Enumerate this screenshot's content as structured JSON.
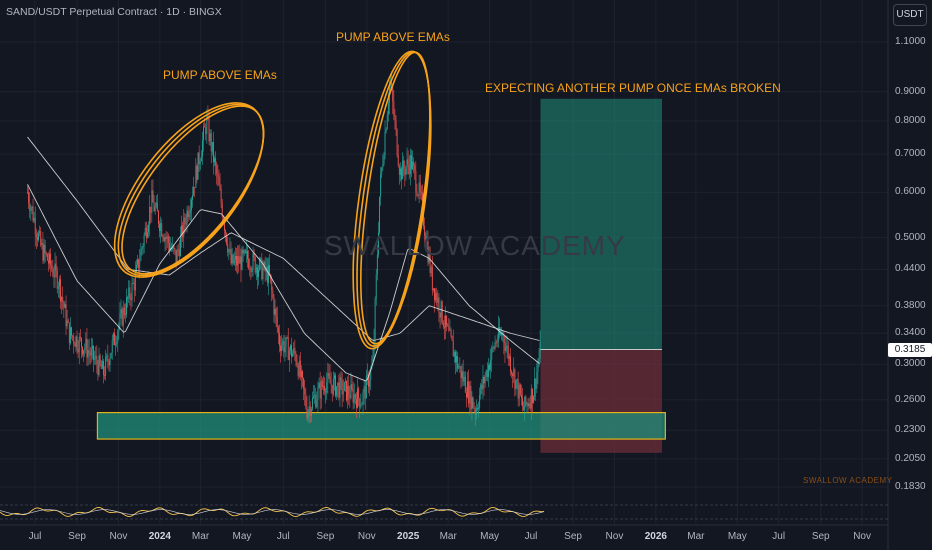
{
  "header": {
    "title": "SAND/USDT Perpetual Contract · 1D · BINGX",
    "currency": "USDT"
  },
  "watermark": "SWALLOW ACADEMY",
  "brand": "SWALLOW ACADEMY",
  "annotations": {
    "pump1": "PUMP ABOVE EMAs",
    "pump2": "PUMP ABOVE EMAs",
    "expect": "EXPECTING ANOTHER PUMP ONCE EMAs BROKEN"
  },
  "price_tag": "0.3185",
  "colors": {
    "up": "#26a69a",
    "down": "#ef5350",
    "annotation": "#f7a21b",
    "zone": "#1f8f7a",
    "loss": "#6b2d3a",
    "ema": "#e0e0e0"
  },
  "chart_data": {
    "type": "candlestick",
    "symbol": "SAND/USDT",
    "timeframe": "1D",
    "y_scale": "log",
    "ylim": [
      0.175,
      1.12
    ],
    "y_ticks": [
      "1.1000",
      "0.9000",
      "0.8000",
      "0.7000",
      "0.6000",
      "0.5000",
      "0.4400",
      "0.3800",
      "0.3400",
      "0.3000",
      "0.2600",
      "0.2300",
      "0.2050",
      "0.1830"
    ],
    "x_ticks": [
      "Jul",
      "Sep",
      "Nov",
      "2024",
      "Mar",
      "May",
      "Jul",
      "Sep",
      "Nov",
      "2025",
      "Mar",
      "May",
      "Jul",
      "Sep",
      "Nov",
      "2026",
      "Mar",
      "May",
      "Jul",
      "Sep",
      "Nov"
    ],
    "last_price": 0.3185,
    "price_path": [
      [
        "2023-06-20",
        0.6
      ],
      [
        "2023-07-10",
        0.48
      ],
      [
        "2023-08-05",
        0.42
      ],
      [
        "2023-08-20",
        0.34
      ],
      [
        "2023-09-15",
        0.32
      ],
      [
        "2023-10-10",
        0.29
      ],
      [
        "2023-11-01",
        0.35
      ],
      [
        "2023-11-25",
        0.42
      ],
      [
        "2023-12-20",
        0.58
      ],
      [
        "2024-01-10",
        0.5
      ],
      [
        "2024-01-25",
        0.46
      ],
      [
        "2024-02-20",
        0.62
      ],
      [
        "2024-03-10",
        0.8
      ],
      [
        "2024-03-25",
        0.64
      ],
      [
        "2024-04-15",
        0.45
      ],
      [
        "2024-05-10",
        0.46
      ],
      [
        "2024-06-10",
        0.43
      ],
      [
        "2024-06-25",
        0.33
      ],
      [
        "2024-07-20",
        0.31
      ],
      [
        "2024-08-05",
        0.25
      ],
      [
        "2024-09-01",
        0.28
      ],
      [
        "2024-10-01",
        0.27
      ],
      [
        "2024-10-25",
        0.26
      ],
      [
        "2024-11-10",
        0.3
      ],
      [
        "2024-11-20",
        0.6
      ],
      [
        "2024-12-05",
        0.95
      ],
      [
        "2024-12-20",
        0.65
      ],
      [
        "2025-01-05",
        0.68
      ],
      [
        "2025-01-20",
        0.58
      ],
      [
        "2025-02-05",
        0.42
      ],
      [
        "2025-02-25",
        0.35
      ],
      [
        "2025-03-15",
        0.3
      ],
      [
        "2025-04-10",
        0.25
      ],
      [
        "2025-05-10",
        0.33
      ],
      [
        "2025-05-20",
        0.34
      ],
      [
        "2025-06-20",
        0.25
      ],
      [
        "2025-07-05",
        0.27
      ],
      [
        "2025-07-15",
        0.3185
      ]
    ],
    "ema_fast": [
      [
        "2023-06-20",
        0.62
      ],
      [
        "2023-09-01",
        0.42
      ],
      [
        "2023-11-10",
        0.34
      ],
      [
        "2024-01-01",
        0.45
      ],
      [
        "2024-03-01",
        0.56
      ],
      [
        "2024-04-01",
        0.55
      ],
      [
        "2024-06-01",
        0.45
      ],
      [
        "2024-08-01",
        0.34
      ],
      [
        "2024-10-01",
        0.29
      ],
      [
        "2024-11-01",
        0.28
      ],
      [
        "2024-12-05",
        0.37
      ],
      [
        "2025-01-01",
        0.48
      ],
      [
        "2025-02-01",
        0.46
      ],
      [
        "2025-04-01",
        0.38
      ],
      [
        "2025-06-01",
        0.33
      ],
      [
        "2025-07-15",
        0.3
      ]
    ],
    "ema_slow": [
      [
        "2023-06-20",
        0.75
      ],
      [
        "2023-09-01",
        0.58
      ],
      [
        "2023-11-15",
        0.44
      ],
      [
        "2024-01-15",
        0.43
      ],
      [
        "2024-03-01",
        0.47
      ],
      [
        "2024-04-15",
        0.51
      ],
      [
        "2024-07-01",
        0.46
      ],
      [
        "2024-09-15",
        0.38
      ],
      [
        "2024-11-10",
        0.33
      ],
      [
        "2024-12-20",
        0.34
      ],
      [
        "2025-02-01",
        0.38
      ],
      [
        "2025-04-01",
        0.36
      ],
      [
        "2025-06-01",
        0.34
      ],
      [
        "2025-07-15",
        0.33
      ]
    ],
    "support_zone": {
      "from": "2023-10-01",
      "to": "2026-01-15",
      "low": 0.222,
      "high": 0.247
    },
    "position": {
      "from": "2025-07-15",
      "to": "2026-01-10",
      "entry": 0.3185,
      "target": 0.875,
      "stop": 0.21
    }
  }
}
